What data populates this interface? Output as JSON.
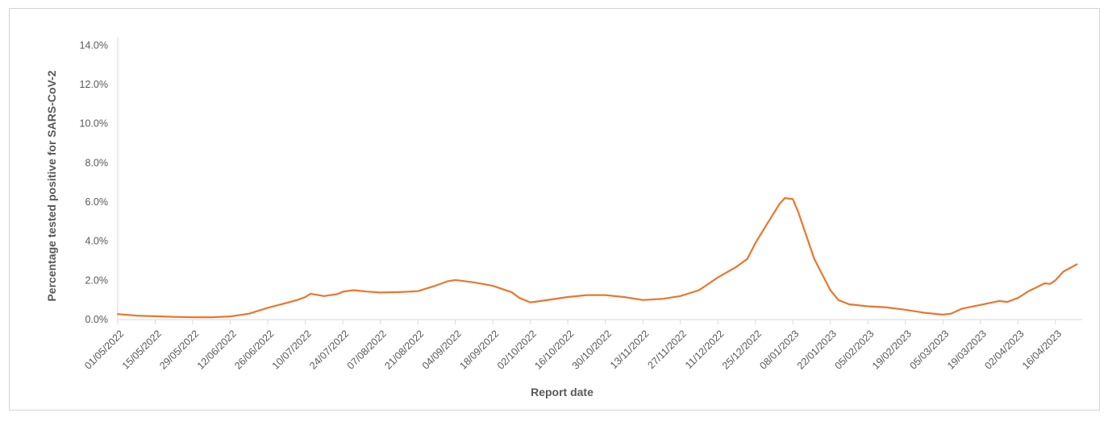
{
  "chart_data": {
    "type": "line",
    "title": "",
    "xlabel": "Report date",
    "ylabel": "Percentage tested positive for SARS-CoV-2",
    "ylim": [
      0,
      15
    ],
    "y_unit": "%",
    "yticks": [
      0,
      2,
      4,
      6,
      8,
      10,
      12,
      14
    ],
    "ytick_labels": [
      "0.0%",
      "2.0%",
      "4.0%",
      "6.0%",
      "8.0%",
      "10.0%",
      "12.0%",
      "14.0%"
    ],
    "x_range": [
      "2022-05-01",
      "2023-04-26"
    ],
    "xtick_dates": [
      "2022-05-01",
      "2022-05-15",
      "2022-05-29",
      "2022-06-12",
      "2022-06-26",
      "2022-07-10",
      "2022-07-24",
      "2022-08-07",
      "2022-08-21",
      "2022-09-04",
      "2022-09-18",
      "2022-10-02",
      "2022-10-16",
      "2022-10-30",
      "2022-11-13",
      "2022-11-27",
      "2022-12-11",
      "2022-12-25",
      "2023-01-08",
      "2023-01-22",
      "2023-02-05",
      "2023-02-19",
      "2023-03-05",
      "2023-03-19",
      "2023-04-02",
      "2023-04-16"
    ],
    "xtick_labels": [
      "01/05/2022",
      "15/05/2022",
      "29/05/2022",
      "12/06/2022",
      "26/06/2022",
      "10/07/2022",
      "24/07/2022",
      "07/08/2022",
      "21/08/2022",
      "04/09/2022",
      "18/09/2022",
      "02/10/2022",
      "16/10/2022",
      "30/10/2022",
      "13/11/2022",
      "27/11/2022",
      "11/12/2022",
      "25/12/2022",
      "08/01/2023",
      "22/01/2023",
      "05/02/2023",
      "19/02/2023",
      "05/03/2023",
      "19/03/2023",
      "02/04/2023",
      "16/04/2023"
    ],
    "grid": false,
    "colors": {
      "line": "#e8772e",
      "axis": "#d9d9d9",
      "text": "#595959",
      "frame": "#d4d4d4"
    },
    "series": [
      {
        "points": [
          [
            "2022-05-01",
            0.28
          ],
          [
            "2022-05-08",
            0.2
          ],
          [
            "2022-05-15",
            0.17
          ],
          [
            "2022-05-22",
            0.14
          ],
          [
            "2022-05-29",
            0.12
          ],
          [
            "2022-06-05",
            0.12
          ],
          [
            "2022-06-12",
            0.16
          ],
          [
            "2022-06-19",
            0.3
          ],
          [
            "2022-06-26",
            0.6
          ],
          [
            "2022-07-03",
            0.85
          ],
          [
            "2022-07-07",
            1.0
          ],
          [
            "2022-07-10",
            1.15
          ],
          [
            "2022-07-12",
            1.32
          ],
          [
            "2022-07-17",
            1.2
          ],
          [
            "2022-07-22",
            1.3
          ],
          [
            "2022-07-24",
            1.42
          ],
          [
            "2022-07-28",
            1.5
          ],
          [
            "2022-08-02",
            1.43
          ],
          [
            "2022-08-07",
            1.38
          ],
          [
            "2022-08-14",
            1.4
          ],
          [
            "2022-08-21",
            1.45
          ],
          [
            "2022-08-27",
            1.7
          ],
          [
            "2022-09-01",
            1.95
          ],
          [
            "2022-09-04",
            2.02
          ],
          [
            "2022-09-11",
            1.9
          ],
          [
            "2022-09-18",
            1.72
          ],
          [
            "2022-09-25",
            1.4
          ],
          [
            "2022-09-28",
            1.1
          ],
          [
            "2022-10-02",
            0.88
          ],
          [
            "2022-10-06",
            0.95
          ],
          [
            "2022-10-16",
            1.15
          ],
          [
            "2022-10-23",
            1.25
          ],
          [
            "2022-10-30",
            1.25
          ],
          [
            "2022-11-06",
            1.15
          ],
          [
            "2022-11-13",
            1.0
          ],
          [
            "2022-11-20",
            1.05
          ],
          [
            "2022-11-27",
            1.2
          ],
          [
            "2022-12-04",
            1.5
          ],
          [
            "2022-12-11",
            2.15
          ],
          [
            "2022-12-18",
            2.7
          ],
          [
            "2022-12-22",
            3.1
          ],
          [
            "2022-12-25",
            3.9
          ],
          [
            "2022-12-29",
            4.8
          ],
          [
            "2023-01-03",
            5.9
          ],
          [
            "2023-01-05",
            6.2
          ],
          [
            "2023-01-08",
            6.15
          ],
          [
            "2023-01-10",
            5.5
          ],
          [
            "2023-01-13",
            4.3
          ],
          [
            "2023-01-16",
            3.1
          ],
          [
            "2023-01-19",
            2.3
          ],
          [
            "2023-01-22",
            1.5
          ],
          [
            "2023-01-25",
            1.0
          ],
          [
            "2023-01-29",
            0.78
          ],
          [
            "2023-02-05",
            0.68
          ],
          [
            "2023-02-12",
            0.62
          ],
          [
            "2023-02-19",
            0.5
          ],
          [
            "2023-02-26",
            0.35
          ],
          [
            "2023-03-05",
            0.25
          ],
          [
            "2023-03-08",
            0.3
          ],
          [
            "2023-03-12",
            0.55
          ],
          [
            "2023-03-19",
            0.75
          ],
          [
            "2023-03-26",
            0.95
          ],
          [
            "2023-03-29",
            0.9
          ],
          [
            "2023-04-02",
            1.1
          ],
          [
            "2023-04-06",
            1.45
          ],
          [
            "2023-04-09",
            1.65
          ],
          [
            "2023-04-12",
            1.85
          ],
          [
            "2023-04-14",
            1.82
          ],
          [
            "2023-04-16",
            2.0
          ],
          [
            "2023-04-19",
            2.45
          ],
          [
            "2023-04-24",
            2.82
          ]
        ]
      }
    ]
  }
}
